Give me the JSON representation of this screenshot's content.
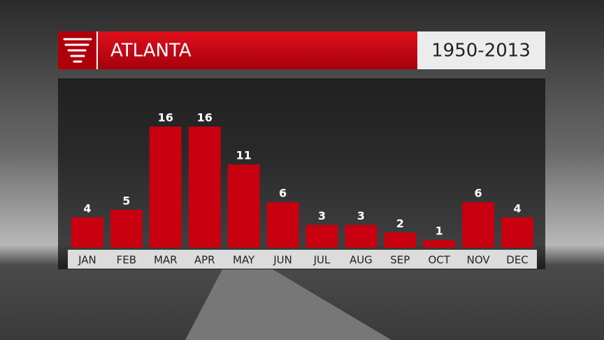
{
  "chart_data": {
    "type": "bar",
    "title": "ATLANTA",
    "subtitle": "1950-2013",
    "categories": [
      "JAN",
      "FEB",
      "MAR",
      "APR",
      "MAY",
      "JUN",
      "JUL",
      "AUG",
      "SEP",
      "OCT",
      "NOV",
      "DEC"
    ],
    "values": [
      4,
      5,
      16,
      16,
      11,
      6,
      3,
      3,
      2,
      1,
      6,
      4
    ],
    "color": "#c8000f"
  }
}
